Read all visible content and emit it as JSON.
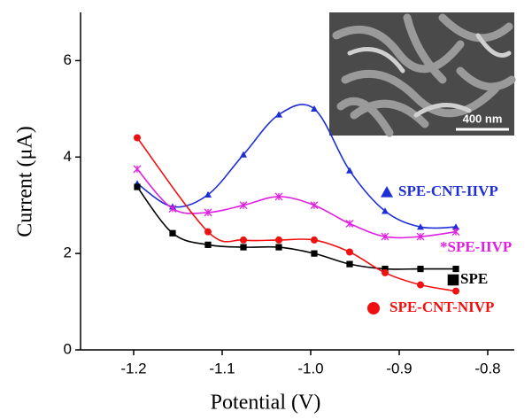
{
  "chart_data": {
    "type": "line",
    "x_label": "Potential (V)",
    "y_label": "Current (μA)",
    "xlim": [
      -1.26,
      -0.77
    ],
    "ylim": [
      0,
      7
    ],
    "xticks": [
      -1.2,
      -1.1,
      {
        "value": -1,
        "label": "-1.0"
      },
      -0.9,
      -0.8
    ],
    "yticks": [
      0,
      2,
      4,
      6
    ],
    "inset_scale": "400 nm",
    "series": [
      {
        "name": "SPE-CNT-IIVP",
        "color": "#1f2fd6",
        "marker": "triangle",
        "x": [
          -1.196,
          -1.156,
          -1.116,
          -1.076,
          -1.036,
          -0.996,
          -0.956,
          -0.916,
          -0.876,
          -0.836
        ],
        "values": [
          3.45,
          2.97,
          3.22,
          4.05,
          4.88,
          5.0,
          3.72,
          2.88,
          2.55,
          2.55
        ]
      },
      {
        "name": "*SPE-IIVP",
        "color": "#e020e0",
        "marker": "star",
        "x": [
          -1.196,
          -1.156,
          -1.116,
          -1.076,
          -1.036,
          -0.996,
          -0.956,
          -0.916,
          -0.876,
          -0.836
        ],
        "values": [
          3.75,
          2.93,
          2.85,
          3.0,
          3.18,
          3.0,
          2.62,
          2.35,
          2.35,
          2.45
        ]
      },
      {
        "name": "SPE",
        "color": "#000000",
        "marker": "square",
        "x": [
          -1.196,
          -1.156,
          -1.116,
          -1.076,
          -1.036,
          -0.996,
          -0.956,
          -0.916,
          -0.876,
          -0.836
        ],
        "values": [
          3.38,
          2.42,
          2.18,
          2.13,
          2.13,
          2.0,
          1.78,
          1.68,
          1.68,
          1.68
        ]
      },
      {
        "name": "SPE-CNT-NIVP",
        "color": "#f01010",
        "marker": "circle",
        "x": [
          -1.196,
          -1.116,
          -1.076,
          -1.036,
          -0.996,
          -0.956,
          -0.916,
          -0.876,
          -0.836
        ],
        "values": [
          4.4,
          2.45,
          2.28,
          2.28,
          2.28,
          2.03,
          1.6,
          1.35,
          1.22
        ]
      }
    ]
  }
}
